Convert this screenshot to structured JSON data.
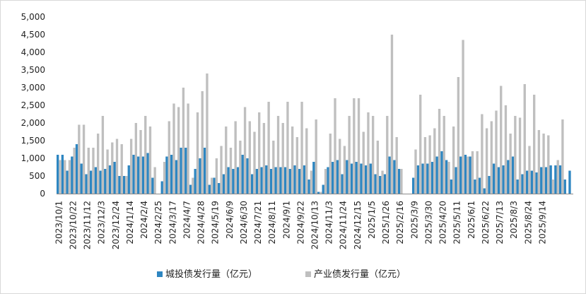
{
  "chart_data": {
    "type": "bar",
    "y_ticks": [
      "0",
      "500",
      "1,000",
      "1,500",
      "2,000",
      "2,500",
      "3,000",
      "3,500",
      "4,000",
      "4,500",
      "5,000"
    ],
    "ylim": [
      0,
      5000
    ],
    "x_tick_labels": [
      "2023/10/1",
      "2023/10/22",
      "2023/11/12",
      "2023/12/3",
      "2023/12/24",
      "2024/1/14",
      "2024/2/4",
      "2024/2/25",
      "2024/3/17",
      "2024/4/7",
      "2024/4/28",
      "2024/5/19",
      "2024/6/9",
      "2024/6/30",
      "2024/7/21",
      "2024/8/11",
      "2024/9/1",
      "2024/9/22",
      "2024/10/13",
      "2024/11/3",
      "2024/11/24",
      "2024/12/15",
      "2025/1/5",
      "2025/1/26",
      "2025/2/16",
      "2025/3/9",
      "2025/3/30",
      "2025/4/20",
      "2025/5/11",
      "2025/6/1",
      "2025/6/22",
      "2025/7/13",
      "2025/8/3",
      "2025/8/24",
      "2025/9/14"
    ],
    "grid": false,
    "legend_position": "bottom",
    "series": [
      {
        "name": "城投债发行量（亿元）",
        "color": "#2E86C1",
        "values": [
          1100,
          1100,
          650,
          1050,
          1400,
          850,
          550,
          650,
          750,
          650,
          700,
          800,
          900,
          500,
          500,
          800,
          1100,
          1050,
          1050,
          1150,
          450,
          0,
          350,
          1050,
          1100,
          950,
          1300,
          1300,
          250,
          700,
          1000,
          1300,
          250,
          450,
          300,
          550,
          750,
          700,
          750,
          1100,
          1000,
          550,
          700,
          750,
          800,
          700,
          750,
          750,
          750,
          700,
          800,
          700,
          800,
          400,
          900,
          50,
          250,
          750,
          900,
          950,
          550,
          950,
          850,
          900,
          850,
          800,
          850,
          550,
          500,
          550,
          1050,
          950,
          700,
          0,
          0,
          450,
          800,
          850,
          850,
          900,
          1050,
          1200,
          950,
          400,
          750,
          1050,
          1100,
          1050,
          400,
          450,
          150,
          500,
          850,
          750,
          800,
          950,
          1050,
          400,
          550,
          650,
          650,
          600,
          750,
          750,
          800,
          800,
          800,
          400,
          650
        ],
        "show_in_legend": true
      },
      {
        "name": "产业债发行量（亿元）",
        "color": "#BFBFBF",
        "values": [
          950,
          950,
          950,
          1300,
          1950,
          1950,
          1300,
          1300,
          1700,
          2200,
          1250,
          1450,
          1550,
          1400,
          500,
          1550,
          2000,
          1800,
          2200,
          1900,
          750,
          0,
          900,
          2050,
          2550,
          2450,
          3000,
          2550,
          450,
          2300,
          2900,
          3400,
          450,
          1000,
          1350,
          1900,
          1300,
          2050,
          1500,
          2450,
          2050,
          1750,
          2300,
          2000,
          2600,
          1500,
          2200,
          2000,
          2600,
          1900,
          1600,
          2600,
          1850,
          650,
          2100,
          50,
          700,
          1700,
          2700,
          1550,
          1350,
          2200,
          2700,
          2700,
          1750,
          2300,
          2200,
          1500,
          650,
          2200,
          4500,
          1600,
          700,
          0,
          0,
          1250,
          2800,
          1600,
          1650,
          1850,
          2400,
          2200,
          900,
          1900,
          3300,
          4350,
          1050,
          1200,
          1200,
          2250,
          1850,
          2050,
          2350,
          3050,
          2500,
          1700,
          2200,
          2150,
          3100,
          1350,
          2800,
          1800,
          1700,
          1650,
          400,
          950,
          2100
        ],
        "show_in_legend": true
      }
    ]
  }
}
